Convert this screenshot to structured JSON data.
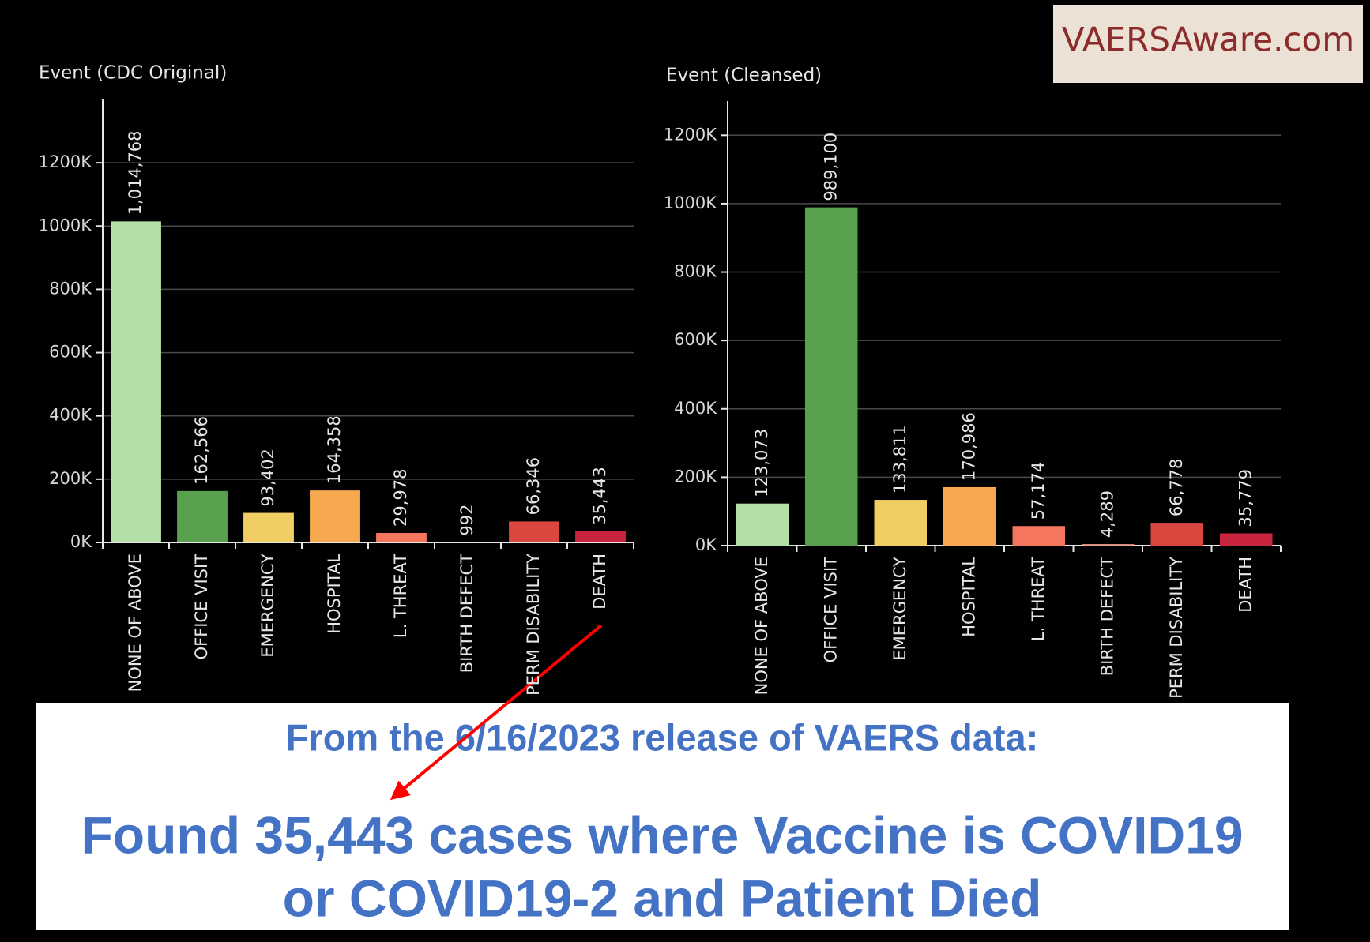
{
  "chart_data": [
    {
      "type": "bar",
      "title": "Event (CDC Original)",
      "categories": [
        "NONE OF ABOVE",
        "OFFICE VISIT",
        "EMERGENCY",
        "HOSPITAL",
        "L. THREAT",
        "BIRTH DEFECT",
        "PERM DISABILITY",
        "DEATH"
      ],
      "values": [
        1014768,
        162566,
        93402,
        164358,
        29978,
        992,
        66346,
        35443
      ],
      "value_labels": [
        "1,014,768",
        "162,566",
        "93,402",
        "164,358",
        "29,978",
        "992",
        "66,346",
        "35,443"
      ],
      "colors": [
        "#b3e0a6",
        "#59a14f",
        "#f1ce63",
        "#f7a94f",
        "#f4765f",
        "#f0a08f",
        "#d9473f",
        "#c8243d"
      ],
      "ylim": [
        0,
        1400000
      ],
      "yticks": [
        {
          "value": 0,
          "label": "0K"
        },
        {
          "value": 200000,
          "label": "200K"
        },
        {
          "value": 400000,
          "label": "400K"
        },
        {
          "value": 600000,
          "label": "600K"
        },
        {
          "value": 800000,
          "label": "800K"
        },
        {
          "value": 1000000,
          "label": "1000K"
        },
        {
          "value": 1200000,
          "label": "1200K"
        }
      ],
      "grid": true
    },
    {
      "type": "bar",
      "title": "Event (Cleansed)",
      "categories": [
        "NONE OF ABOVE",
        "OFFICE VISIT",
        "EMERGENCY",
        "HOSPITAL",
        "L. THREAT",
        "BIRTH DEFECT",
        "PERM DISABILITY",
        "DEATH"
      ],
      "values": [
        123073,
        989100,
        133811,
        170986,
        57174,
        4289,
        66778,
        35779
      ],
      "value_labels": [
        "123,073",
        "989,100",
        "133,811",
        "170,986",
        "57,174",
        "4,289",
        "66,778",
        "35,779"
      ],
      "colors": [
        "#b3e0a6",
        "#59a14f",
        "#f1ce63",
        "#f7a94f",
        "#f4765f",
        "#f0a08f",
        "#d9473f",
        "#c8243d"
      ],
      "ylim": [
        0,
        1300000
      ],
      "yticks": [
        {
          "value": 0,
          "label": "0K"
        },
        {
          "value": 200000,
          "label": "200K"
        },
        {
          "value": 400000,
          "label": "400K"
        },
        {
          "value": 600000,
          "label": "600K"
        },
        {
          "value": 800000,
          "label": "800K"
        },
        {
          "value": 1000000,
          "label": "1000K"
        },
        {
          "value": 1200000,
          "label": "1200K"
        }
      ],
      "grid": true
    }
  ],
  "watermark": "VAERSAware.com",
  "caption": {
    "line1": "From the 6/16/2023 release of VAERS data:",
    "line2": "Found 35,443 cases where Vaccine is COVID19",
    "line3": "or COVID19-2 and Patient Died"
  }
}
